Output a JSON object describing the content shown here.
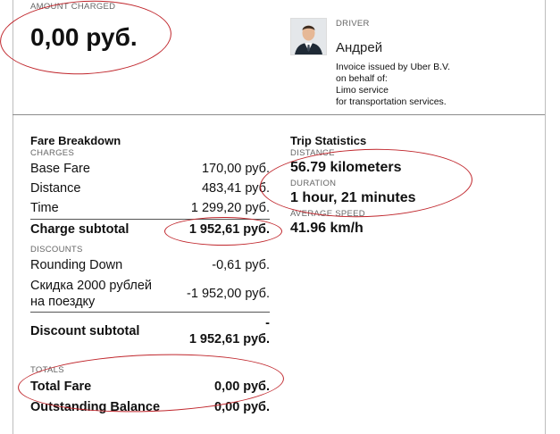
{
  "header": {
    "amount_caption": "AMOUNT CHARGED",
    "amount_value": "0,00 руб.",
    "driver_caption": "DRIVER",
    "driver_name": "Андрей",
    "invoice_lines": [
      "Invoice issued by Uber B.V.",
      "on behalf of:",
      "Limo service",
      "for transportation services."
    ]
  },
  "fare": {
    "title": "Fare Breakdown",
    "charges_caption": "CHARGES",
    "charges": [
      {
        "label": "Base Fare",
        "value": "170,00 руб."
      },
      {
        "label": "Distance",
        "value": "483,41 руб."
      },
      {
        "label": "Time",
        "value": "1 299,20 руб."
      }
    ],
    "charge_subtotal_label": "Charge subtotal",
    "charge_subtotal_value": "1 952,61 руб.",
    "discounts_caption": "DISCOUNTS",
    "discounts": [
      {
        "label": "Rounding Down",
        "value": "-0,61 руб."
      },
      {
        "label_line1": "Скидка 2000 рублей",
        "label_line2": "на поездку",
        "value": "-1 952,00 руб."
      }
    ],
    "discount_subtotal_label": "Discount subtotal",
    "discount_subtotal_value_line1": "-",
    "discount_subtotal_value_line2": "1 952,61 руб.",
    "totals_caption": "TOTALS",
    "total_fare_label": "Total Fare",
    "total_fare_value": "0,00 руб.",
    "outstanding_label": "Outstanding Balance",
    "outstanding_value": "0,00 руб."
  },
  "trip": {
    "title": "Trip Statistics",
    "distance_caption": "DISTANCE",
    "distance_value": "56.79 kilometers",
    "duration_caption": "DURATION",
    "duration_value": "1 hour, 21 minutes",
    "speed_caption": "AVERAGE SPEED",
    "speed_value": "41.96 km/h"
  },
  "colors": {
    "annotation": "#c0262c",
    "border": "#bdbdbd"
  }
}
